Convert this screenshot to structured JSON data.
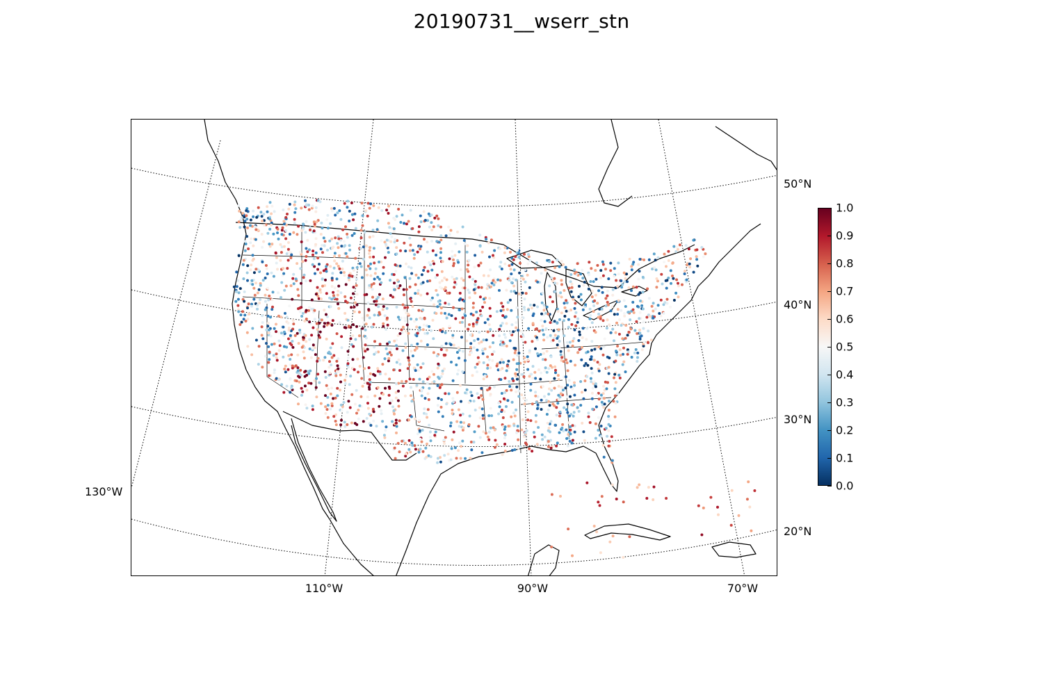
{
  "title": "20190731__wserr_stn",
  "map": {
    "projection": "lambert-conformal",
    "lat_labels": [
      "50°N",
      "40°N",
      "30°N",
      "20°N"
    ],
    "lon_labels": [
      "130°W",
      "110°W",
      "90°W",
      "70°W"
    ],
    "coastline_color": "#000000",
    "graticule_style": "dotted"
  },
  "colorbar": {
    "colormap": "RdBu_r",
    "min": 0.0,
    "max": 1.0,
    "ticks": [
      "0.0",
      "0.1",
      "0.2",
      "0.3",
      "0.4",
      "0.5",
      "0.6",
      "0.7",
      "0.8",
      "0.9",
      "1.0"
    ],
    "stops": [
      "#053061",
      "#2166ac",
      "#4393c3",
      "#92c5de",
      "#d1e5f0",
      "#f7f7f7",
      "#fddbc7",
      "#f4a582",
      "#d6604d",
      "#b2182b",
      "#67001f"
    ]
  }
}
